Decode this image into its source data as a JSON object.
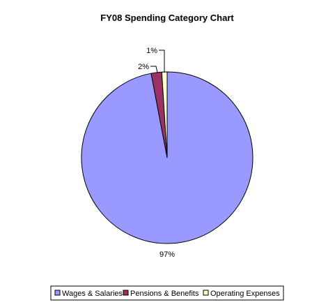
{
  "chart_data": {
    "type": "pie",
    "title": "FY08 Spending Category Chart",
    "categories": [
      "Wages & Salaries",
      "Pensions & Benefits",
      "Operating Expenses"
    ],
    "values": [
      97,
      2,
      1
    ],
    "labels": [
      "97%",
      "2%",
      "1%"
    ],
    "colors": [
      "#9999FF",
      "#993366",
      "#FFFFCC"
    ],
    "legend_position": "bottom"
  }
}
